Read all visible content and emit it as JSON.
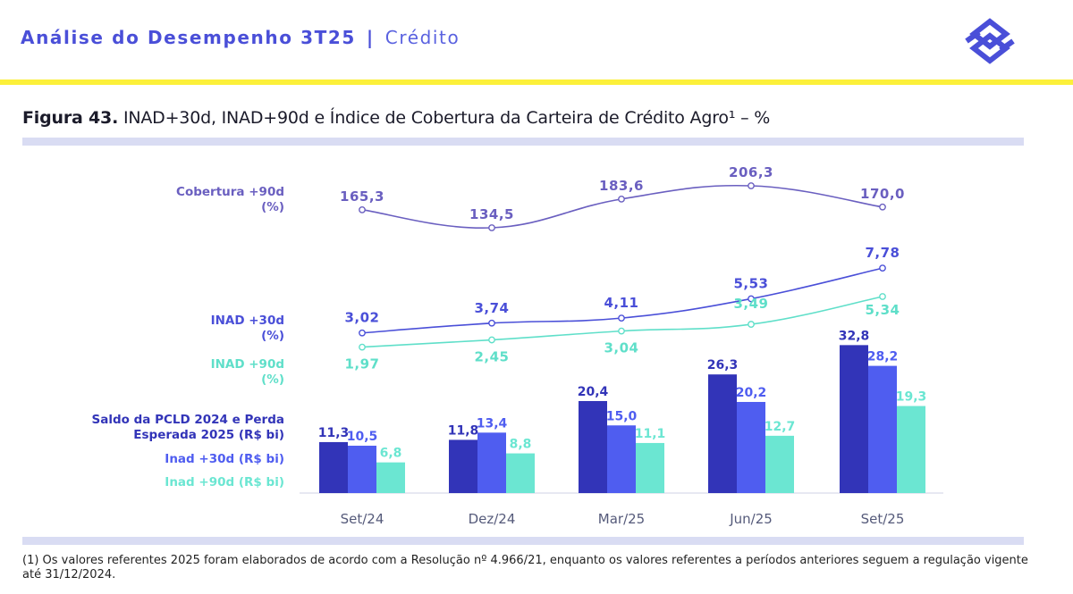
{
  "header": {
    "section": "Análise do Desempenho 3T25",
    "separator": "|",
    "subsection": "Crédito"
  },
  "figure": {
    "number": "Figura 43.",
    "title": "INAD+30d, INAD+90d e Índice de Cobertura da Carteira de Crédito Agro¹ – %"
  },
  "footnote": "(1) Os valores referentes 2025 foram elaborados de acordo com a Resolução nº 4.966/21, enquanto os valores referentes a períodos anteriores seguem a regulação vigente até 31/12/2024.",
  "colors": {
    "brand": "#4a4fd8",
    "yellow": "#fcf03a",
    "cobertura": "#6a5fc0",
    "inad30_line": "#4a4fd8",
    "inad90_line": "#5fdfc9",
    "pcld_bar": "#3234b8",
    "inad30_bar": "#4f5df0",
    "inad90_bar": "#6be6d2"
  },
  "chart_data": {
    "type": "bar+line",
    "categories": [
      "Set/24",
      "Dez/24",
      "Mar/25",
      "Jun/25",
      "Set/25"
    ],
    "line_series": [
      {
        "name": "Cobertura +90d (%)",
        "labels": [
          "Cobertura +90d",
          "(%)"
        ],
        "values": [
          165.3,
          134.5,
          183.6,
          206.3,
          170.0
        ],
        "display": [
          "165,3",
          "134,5",
          "183,6",
          "206,3",
          "170,0"
        ]
      },
      {
        "name": "INAD +30d (%)",
        "labels": [
          "INAD +30d",
          "(%)"
        ],
        "values": [
          3.02,
          3.74,
          4.11,
          5.53,
          7.78
        ],
        "display": [
          "3,02",
          "3,74",
          "4,11",
          "5,53",
          "7,78"
        ]
      },
      {
        "name": "INAD +90d (%)",
        "labels": [
          "INAD +90d",
          "(%)"
        ],
        "values": [
          1.97,
          2.45,
          3.04,
          3.49,
          5.34
        ],
        "display": [
          "1,97",
          "2,45",
          "3,04",
          "3,49",
          "5,34"
        ]
      }
    ],
    "bar_series": [
      {
        "name": "Saldo da PCLD 2024 e Perda Esperada 2025 (R$ bi)",
        "labels": [
          "Saldo da PCLD 2024 e Perda",
          "Esperada 2025 (R$ bi)"
        ],
        "values": [
          11.3,
          11.8,
          20.4,
          26.3,
          32.8
        ],
        "display": [
          "11,3",
          "11,8",
          "20,4",
          "26,3",
          "32,8"
        ]
      },
      {
        "name": "Inad +30d (R$ bi)",
        "labels": [
          "Inad +30d (R$ bi)"
        ],
        "values": [
          10.5,
          13.4,
          15.0,
          20.2,
          28.2
        ],
        "display": [
          "10,5",
          "13,4",
          "15,0",
          "20,2",
          "28,2"
        ]
      },
      {
        "name": "Inad +90d (R$ bi)",
        "labels": [
          "Inad +90d (R$ bi)"
        ],
        "values": [
          6.8,
          8.8,
          11.1,
          12.7,
          19.3
        ],
        "display": [
          "6,8",
          "8,8",
          "11,1",
          "12,7",
          "19,3"
        ]
      }
    ],
    "legend": "left"
  }
}
